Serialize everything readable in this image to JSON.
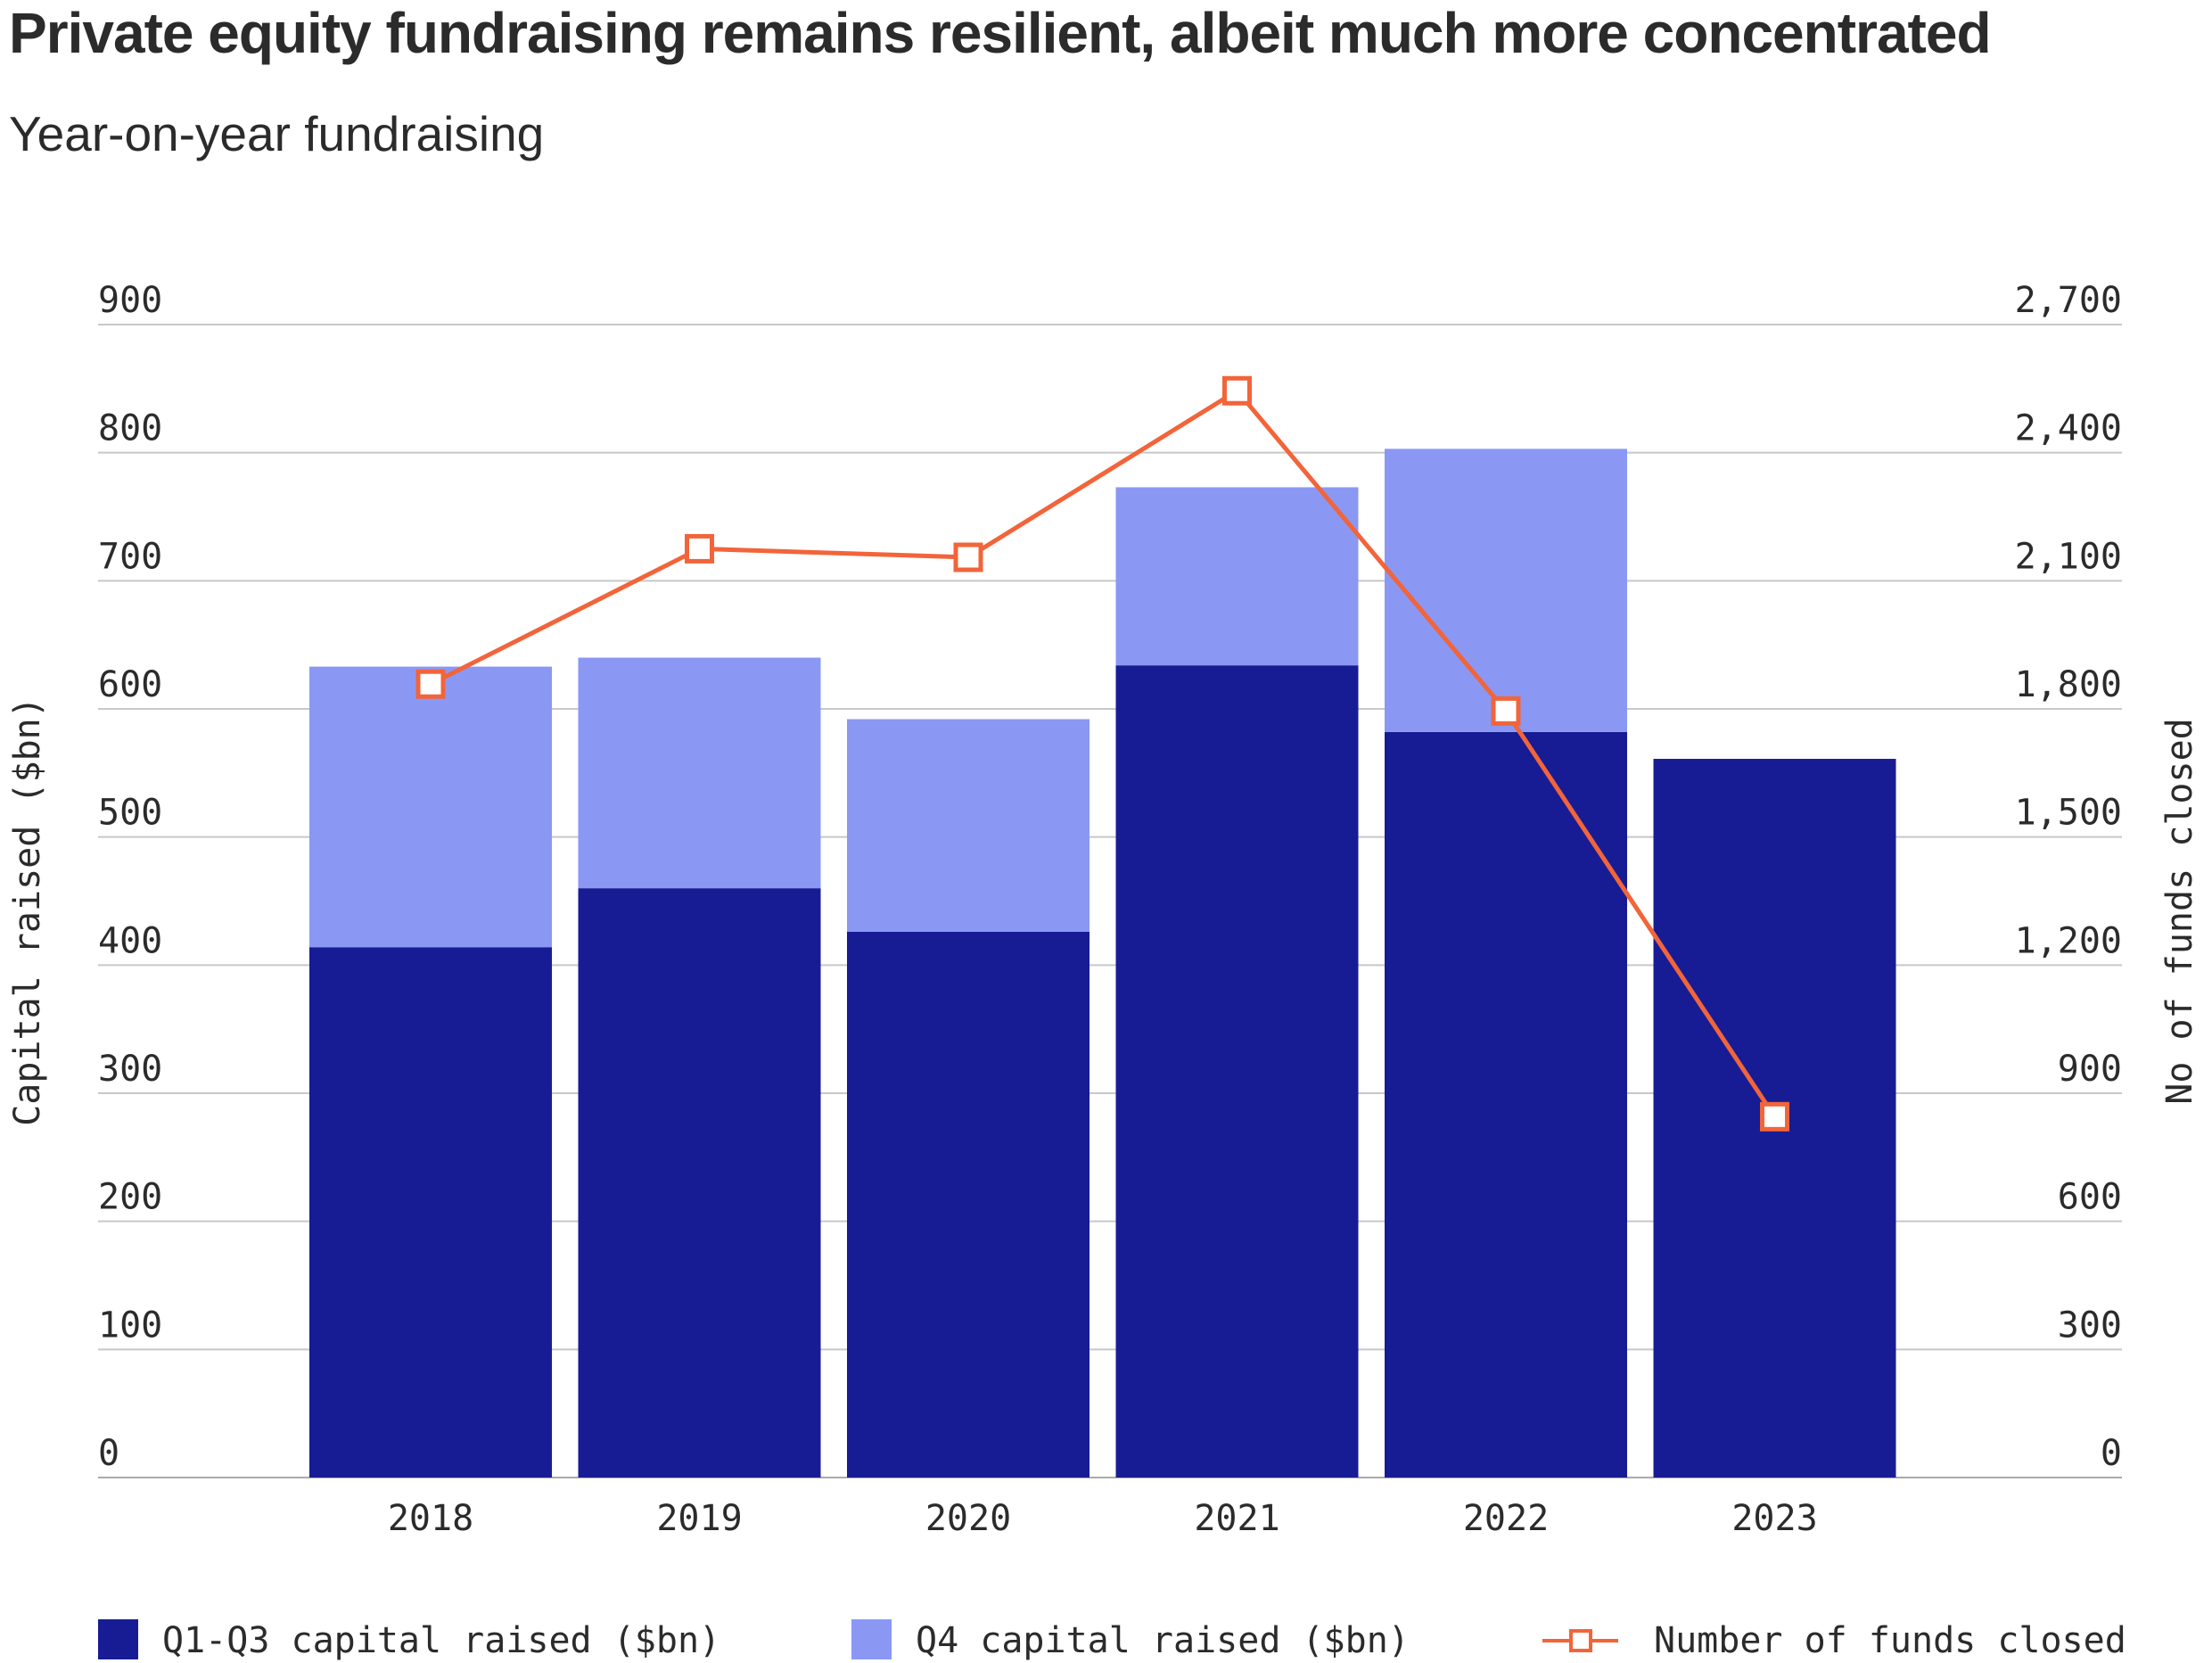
{
  "title": "Private equity fundraising remains resilient, albeit much more concentrated",
  "subtitle": "Year-on-year fundraising",
  "chart_data": {
    "type": "bar",
    "stacked": true,
    "categories": [
      "2018",
      "2019",
      "2020",
      "2021",
      "2022",
      "2023"
    ],
    "series": [
      {
        "name": "Q1-Q3 capital raised ($bn)",
        "axis": "left",
        "type": "bar",
        "color": "#181c94",
        "values": [
          414,
          460,
          426,
          634,
          582,
          561
        ]
      },
      {
        "name": "Q4 capital raised ($bn)",
        "axis": "left",
        "type": "bar",
        "color": "#8a98f4",
        "values": [
          219,
          180,
          166,
          139,
          221,
          0
        ]
      },
      {
        "name": "Number of funds closed",
        "axis": "right",
        "type": "line",
        "color": "#f2643a",
        "values": [
          1858,
          2175,
          2155,
          2545,
          1795,
          845
        ]
      }
    ],
    "ylabel": "Capital raised ($bn)",
    "ylim": [
      0,
      900
    ],
    "yticks": [
      "0",
      "100",
      "200",
      "300",
      "400",
      "500",
      "600",
      "700",
      "800",
      "900"
    ],
    "y2label": "No of funds closed",
    "y2lim": [
      0,
      2700
    ],
    "y2ticks": [
      "0",
      "300",
      "600",
      "900",
      "1,200",
      "1,500",
      "1,800",
      "2,100",
      "2,400",
      "2,700"
    ],
    "grid": true,
    "legend_position": "bottom"
  }
}
